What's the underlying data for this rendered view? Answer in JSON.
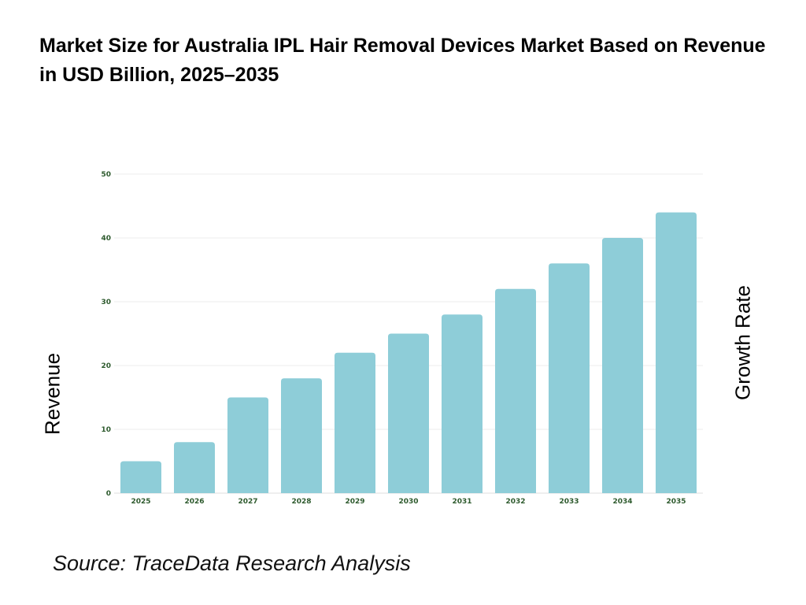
{
  "chart_data": {
    "type": "bar",
    "title": "Market Size for Australia IPL Hair Removal Devices Market Based on Revenue in USD Billion, 2025–2035",
    "categories": [
      "2025",
      "2026",
      "2027",
      "2028",
      "2029",
      "2030",
      "2031",
      "2032",
      "2033",
      "2034",
      "2035"
    ],
    "values": [
      5,
      8,
      15,
      18,
      22,
      25,
      28,
      32,
      36,
      40,
      44
    ],
    "ylabel": "Revenue",
    "y2label": "Growth Rate",
    "ylim": [
      0,
      50
    ],
    "yticks": [
      0,
      10,
      20,
      30,
      40,
      50
    ],
    "grid": true,
    "colors": {
      "bar": "#8ECDD8",
      "tick": "#2d5a2d",
      "grid": "#eeeeee"
    }
  },
  "source": "Source: TraceData Research Analysis"
}
